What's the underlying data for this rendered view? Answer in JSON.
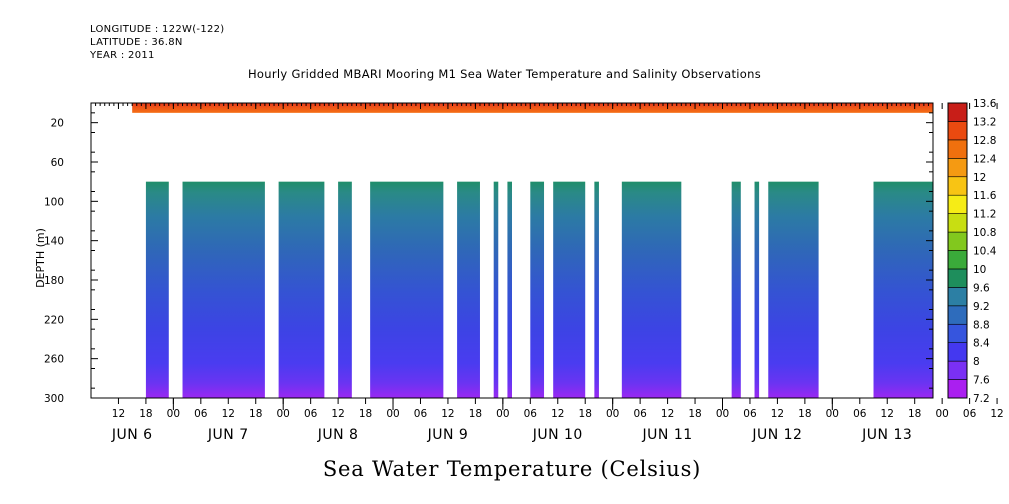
{
  "header": {
    "longitude": "LONGITUDE : 122W(-122)",
    "latitude": "LATITUDE : 36.8N",
    "year": "YEAR : 2011"
  },
  "chart_data": {
    "type": "heatmap",
    "title": "Hourly Gridded MBARI Mooring M1 Sea Water Temperature and Salinity Observations",
    "xlabel": "Sea Water Temperature (Celsius)",
    "ylabel": "DEPTH (m)",
    "ylim": [
      300,
      0
    ],
    "y_ticks": [
      20,
      60,
      100,
      140,
      180,
      220,
      260,
      300
    ],
    "x_hour_ticks": [
      "12",
      "18",
      "00",
      "06",
      "12",
      "18",
      "00",
      "06",
      "12",
      "18",
      "00",
      "06",
      "12",
      "18",
      "00",
      "06",
      "12",
      "18",
      "00",
      "06",
      "12",
      "18",
      "00",
      "06",
      "12",
      "18",
      "00",
      "06",
      "12",
      "18",
      "00",
      "06",
      "12",
      "18",
      "00",
      "06"
    ],
    "x_date_labels": [
      "JUN  6",
      "JUN  7",
      "JUN  8",
      "JUN  9",
      "JUN 10",
      "JUN 11",
      "JUN 12",
      "JUN 13"
    ],
    "x_range_hours": [
      6,
      190
    ],
    "colorbar": {
      "levels": [
        7.2,
        7.6,
        8,
        8.4,
        8.8,
        9.2,
        9.6,
        10,
        10.4,
        10.8,
        11.2,
        11.6,
        12,
        12.4,
        12.8,
        13.2,
        13.6
      ],
      "colors": [
        "#aa1ff0",
        "#7a30f4",
        "#4438f0",
        "#3655de",
        "#2e6cbc",
        "#2c7fa4",
        "#1e8e5c",
        "#3aaa3a",
        "#82c81e",
        "#c8de12",
        "#f6ec16",
        "#f8c414",
        "#f59a12",
        "#f0700e",
        "#ea4a10",
        "#c81e18"
      ],
      "labels": [
        "13.6",
        "13.2",
        "12.8",
        "12.4",
        "12",
        "11.6",
        "11.2",
        "10.8",
        "10.4",
        "10",
        "9.6",
        "9.2",
        "8.8",
        "8.4",
        "8",
        "7.6",
        "7.2"
      ]
    },
    "surface_layer": {
      "depth_range_m": [
        0,
        10
      ],
      "start_hour": 15,
      "end_hour": 190,
      "temperature_range": [
        12.0,
        13.4
      ]
    },
    "deep_layer": {
      "depth_range_m": [
        80,
        300
      ],
      "temperature_range": [
        7.2,
        9.4
      ],
      "segments_hours": [
        [
          18,
          23
        ],
        [
          26,
          44
        ],
        [
          47,
          57
        ],
        [
          60,
          63
        ],
        [
          67,
          83
        ],
        [
          86,
          91
        ],
        [
          94,
          95
        ],
        [
          97,
          98
        ],
        [
          102,
          105
        ],
        [
          107,
          114
        ],
        [
          116,
          117
        ],
        [
          122,
          135
        ],
        [
          146,
          148
        ],
        [
          151,
          152
        ],
        [
          154,
          165
        ],
        [
          177,
          190
        ]
      ]
    }
  }
}
